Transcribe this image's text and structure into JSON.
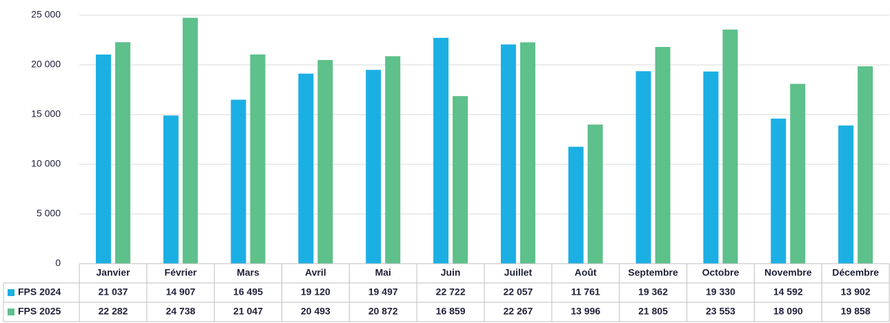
{
  "chart_data": {
    "type": "bar",
    "categories": [
      "Janvier",
      "Février",
      "Mars",
      "Avril",
      "Mai",
      "Juin",
      "Juillet",
      "Août",
      "Septembre",
      "Octobre",
      "Novembre",
      "Décembre"
    ],
    "series": [
      {
        "name": "FPS 2024",
        "color": "#1cafe4",
        "values": [
          21037,
          14907,
          16495,
          19120,
          19497,
          22722,
          22057,
          11761,
          19362,
          19330,
          14592,
          13902
        ],
        "value_labels": [
          "21 037",
          "14 907",
          "16 495",
          "19 120",
          "19 497",
          "22 722",
          "22 057",
          "11 761",
          "19 362",
          "19 330",
          "14 592",
          "13 902"
        ]
      },
      {
        "name": "FPS 2025",
        "color": "#5ec08b",
        "values": [
          22282,
          24738,
          21047,
          20493,
          20872,
          16859,
          22267,
          13996,
          21805,
          23553,
          18090,
          19858
        ],
        "value_labels": [
          "22 282",
          "24 738",
          "21 047",
          "20 493",
          "20 872",
          "16 859",
          "22 267",
          "13 996",
          "21 805",
          "23 553",
          "18 090",
          "19 858"
        ]
      }
    ],
    "ylim": [
      0,
      25000
    ],
    "yticks": [
      0,
      {
        "value": 5000,
        "label": "5 000"
      },
      {
        "value": 10000,
        "label": "10 000"
      },
      {
        "value": 15000,
        "label": "15 000"
      },
      {
        "value": 20000,
        "label": "20 000"
      },
      {
        "value": 25000,
        "label": "25 000"
      }
    ],
    "grid": true
  }
}
